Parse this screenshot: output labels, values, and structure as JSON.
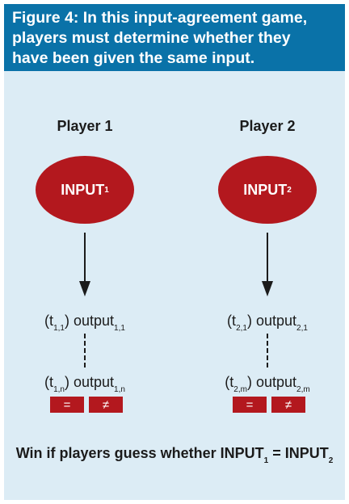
{
  "caption": {
    "line1": "Figure 4: In this input-agreement game,",
    "line2": "players must determine whether they",
    "line3": "have been given the same input."
  },
  "players": [
    {
      "label": "Player 1",
      "input_main": "INPUT",
      "input_sub": "1",
      "outputs": [
        {
          "t_sub": "1,1",
          "o_sub": "1,1"
        },
        {
          "t_sub": "1,n",
          "o_sub": "1,n"
        }
      ],
      "buttons": [
        "=",
        "≠"
      ]
    },
    {
      "label": "Player 2",
      "input_main": "INPUT",
      "input_sub": "2",
      "outputs": [
        {
          "t_sub": "2,1",
          "o_sub": "2,1"
        },
        {
          "t_sub": "2,m",
          "o_sub": "2,m"
        }
      ],
      "buttons": [
        "=",
        "≠"
      ]
    }
  ],
  "output_text": {
    "t": "t",
    "word": "output",
    "open": "(",
    "close": ")"
  },
  "win": {
    "prefix": "Win if players guess whether ",
    "input": "INPUT",
    "sub1": "1",
    "equals": " = ",
    "sub2": "2"
  },
  "colors": {
    "caption_bg": "#0a72a8",
    "figure_bg": "#dcecf5",
    "accent_red": "#b3181e"
  }
}
